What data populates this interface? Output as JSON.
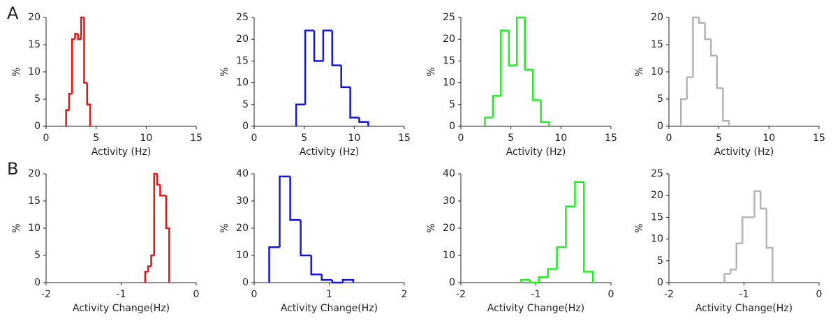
{
  "panel_labels": [
    "A",
    "B"
  ],
  "chart_data": [
    {
      "type": "histogram",
      "xlabel": "Activity (Hz)",
      "ylabel": "%",
      "color": "#f01010",
      "bins": [
        2.0,
        2.3,
        2.6,
        2.9,
        3.2,
        3.5,
        3.8,
        4.1,
        4.4
      ],
      "values": [
        3,
        6,
        16,
        17,
        16,
        20,
        8,
        4
      ],
      "xlim": [
        0,
        15
      ],
      "xticks": [
        0,
        5,
        10,
        15
      ],
      "ylim": [
        0,
        20
      ],
      "yticks": [
        0,
        5,
        10,
        15,
        20
      ]
    },
    {
      "type": "histogram",
      "xlabel": "Activity (Hz)",
      "ylabel": "%",
      "color": "#1414e6",
      "bins": [
        4.2,
        5.1,
        6.0,
        6.9,
        7.8,
        8.7,
        9.6,
        10.5,
        11.4
      ],
      "values": [
        5,
        22,
        15,
        22,
        14,
        9,
        2,
        1
      ],
      "xlim": [
        0,
        15
      ],
      "xticks": [
        0,
        5,
        10,
        15
      ],
      "ylim": [
        0,
        25
      ],
      "yticks": [
        0,
        5,
        10,
        15,
        20,
        25
      ]
    },
    {
      "type": "histogram",
      "xlabel": "Activity (Hz)",
      "ylabel": "%",
      "color": "#22ee22",
      "bins": [
        2.4,
        3.2,
        4.0,
        4.8,
        5.6,
        6.4,
        7.2,
        8.0,
        8.8
      ],
      "values": [
        2,
        7,
        22,
        14,
        25,
        13,
        6,
        1
      ],
      "xlim": [
        0,
        15
      ],
      "xticks": [
        0,
        5,
        10,
        15
      ],
      "ylim": [
        0,
        25
      ],
      "yticks": [
        0,
        5,
        10,
        15,
        20,
        25
      ]
    },
    {
      "type": "histogram",
      "xlabel": "Activity (Hz)",
      "ylabel": "%",
      "color": "#b4b4b4",
      "bins": [
        1.2,
        1.8,
        2.4,
        3.0,
        3.6,
        4.2,
        4.8,
        5.4,
        6.0
      ],
      "values": [
        5,
        9,
        20,
        19,
        16,
        13,
        7,
        1
      ],
      "xlim": [
        0,
        15
      ],
      "xticks": [
        0,
        5,
        10,
        15
      ],
      "ylim": [
        0,
        20
      ],
      "yticks": [
        0,
        5,
        10,
        15,
        20
      ]
    },
    {
      "type": "histogram",
      "xlabel": "Activity Change(Hz)",
      "ylabel": "%",
      "color": "#f01010",
      "bins": [
        -0.68,
        -0.64,
        -0.6,
        -0.56,
        -0.52,
        -0.48,
        -0.44,
        -0.4,
        -0.36
      ],
      "values": [
        2,
        3,
        5,
        20,
        18,
        16,
        16,
        10
      ],
      "xlim": [
        -2,
        0
      ],
      "xticks": [
        -2,
        -1,
        0
      ],
      "ylim": [
        0,
        20
      ],
      "yticks": [
        0,
        5,
        10,
        15,
        20
      ]
    },
    {
      "type": "histogram",
      "xlabel": "Activity Change(Hz)",
      "ylabel": "%",
      "color": "#1414e6",
      "bins": [
        0.2,
        0.34,
        0.48,
        0.62,
        0.76,
        0.9,
        1.04,
        1.18,
        1.32
      ],
      "values": [
        13,
        39,
        23,
        10,
        3,
        1,
        0,
        1
      ],
      "xlim": [
        0,
        2
      ],
      "xticks": [
        0,
        1,
        2
      ],
      "ylim": [
        0,
        40
      ],
      "yticks": [
        0,
        10,
        20,
        30,
        40
      ]
    },
    {
      "type": "histogram",
      "xlabel": "Activity Change(Hz)",
      "ylabel": "%",
      "color": "#22ee22",
      "bins": [
        -1.2,
        -1.08,
        -0.96,
        -0.84,
        -0.72,
        -0.6,
        -0.48,
        -0.36,
        -0.24
      ],
      "values": [
        1,
        0,
        2,
        5,
        13,
        28,
        37,
        4
      ],
      "xlim": [
        -2,
        0
      ],
      "xticks": [
        -2,
        -1,
        0
      ],
      "ylim": [
        0,
        40
      ],
      "yticks": [
        0,
        10,
        20,
        30,
        40
      ]
    },
    {
      "type": "histogram",
      "xlabel": "Activity Change(Hz)",
      "ylabel": "%",
      "color": "#b4b4b4",
      "bins": [
        -1.26,
        -1.18,
        -1.1,
        -1.02,
        -0.94,
        -0.86,
        -0.78,
        -0.7,
        -0.62
      ],
      "values": [
        2,
        3,
        9,
        15,
        15,
        21,
        17,
        8
      ],
      "xlim": [
        -2,
        0
      ],
      "xticks": [
        -2,
        -1,
        0
      ],
      "ylim": [
        0,
        25
      ],
      "yticks": [
        0,
        5,
        10,
        15,
        20,
        25
      ]
    }
  ]
}
